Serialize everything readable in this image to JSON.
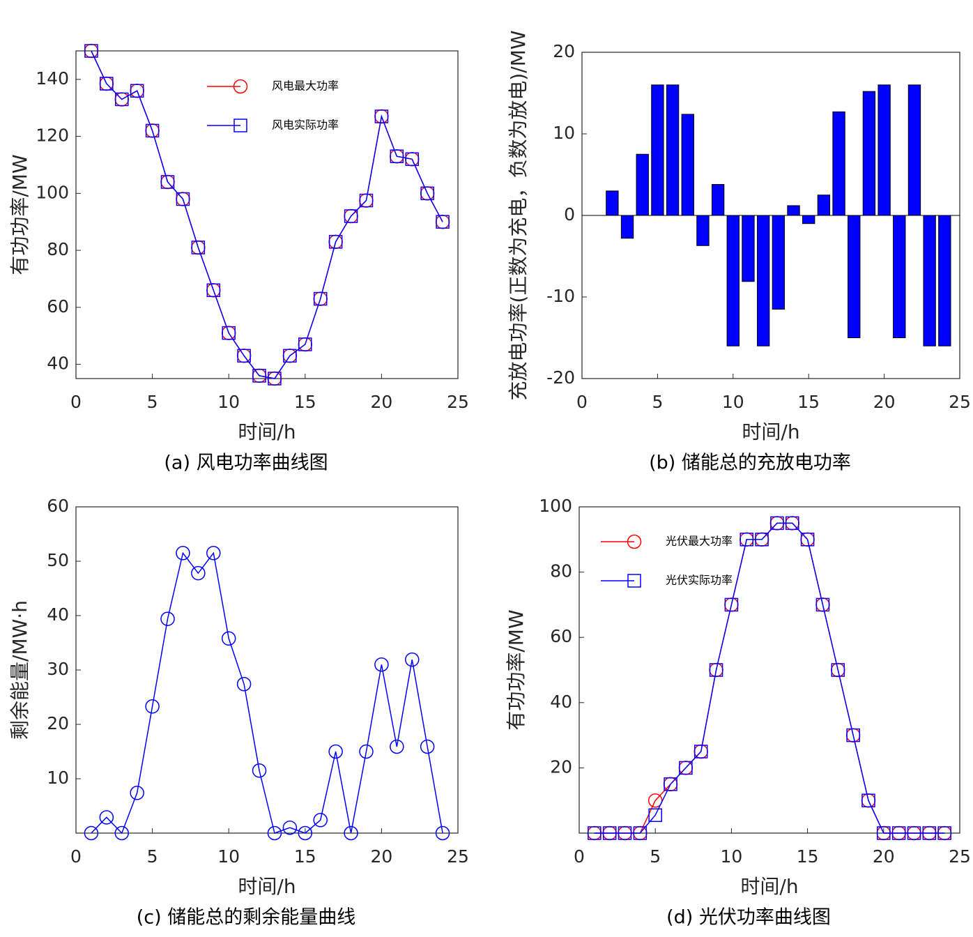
{
  "chart_data": [
    {
      "type": "line",
      "caption": "(a)  风电功率曲线图",
      "xlabel": "时间/h",
      "ylabel": "有功功率/MW",
      "x": [
        1,
        2,
        3,
        4,
        5,
        6,
        7,
        8,
        9,
        10,
        11,
        12,
        13,
        14,
        15,
        16,
        17,
        18,
        19,
        20,
        21,
        22,
        23,
        24
      ],
      "series": [
        {
          "name": "风电最大功率",
          "color": "#ff0000",
          "marker": "circle",
          "values": [
            150,
            138.5,
            133,
            136,
            122,
            104,
            98,
            81,
            66,
            51,
            43,
            36,
            35,
            43,
            47,
            63,
            83,
            92,
            97.5,
            127,
            113,
            112,
            100,
            90
          ]
        },
        {
          "name": "风电实际功率",
          "color": "#0000ff",
          "marker": "square",
          "values": [
            150,
            138.5,
            133,
            136,
            122,
            104,
            98,
            81,
            66,
            51,
            43,
            36,
            35,
            43,
            47,
            63,
            83,
            92,
            97.5,
            127,
            113,
            112,
            100,
            90
          ]
        }
      ],
      "xlim": [
        0,
        25
      ],
      "xticks": [
        0,
        5,
        10,
        15,
        20,
        25
      ],
      "ylim": [
        35,
        150
      ],
      "yticks": [
        40,
        60,
        80,
        100,
        120,
        140
      ],
      "legend": "upper center"
    },
    {
      "type": "bar",
      "caption": "(b)  储能总的充放电功率",
      "xlabel": "时间/h",
      "ylabel": "充放电功率(正数为充电，负数为放电)/MW",
      "x": [
        1,
        2,
        3,
        4,
        5,
        6,
        7,
        8,
        9,
        10,
        11,
        12,
        13,
        14,
        15,
        16,
        17,
        18,
        19,
        20,
        21,
        22,
        23,
        24
      ],
      "values": [
        0,
        3,
        -2.8,
        7.5,
        16,
        16,
        12.4,
        -3.7,
        3.8,
        -16,
        -8.1,
        -16,
        -11.5,
        1.2,
        -1,
        2.5,
        12.7,
        -15,
        15.2,
        16,
        -15,
        16,
        -16,
        -16
      ],
      "color": "#0000ff",
      "xlim": [
        0,
        25
      ],
      "xticks": [
        0,
        5,
        10,
        15,
        20,
        25
      ],
      "ylim": [
        -20,
        20
      ],
      "yticks": [
        -20,
        -10,
        0,
        10,
        20
      ]
    },
    {
      "type": "line",
      "caption": "(c)  储能总的剩余能量曲线",
      "xlabel": "时间/h",
      "ylabel": "剩余能量/MW·h",
      "x": [
        1,
        2,
        3,
        4,
        5,
        6,
        7,
        8,
        9,
        10,
        11,
        12,
        13,
        14,
        15,
        16,
        17,
        18,
        19,
        20,
        21,
        22,
        23,
        24
      ],
      "values": [
        0,
        2.9,
        0,
        7.4,
        23.3,
        39.4,
        51.5,
        47.8,
        51.5,
        35.8,
        27.4,
        11.5,
        0,
        1,
        0,
        2.4,
        15,
        0,
        15,
        31,
        15.9,
        31.9,
        15.9,
        0
      ],
      "color": "#0000ff",
      "marker": "circle",
      "xlim": [
        0,
        25
      ],
      "xticks": [
        0,
        5,
        10,
        15,
        20,
        25
      ],
      "ylim": [
        0,
        60
      ],
      "yticks": [
        10,
        20,
        30,
        40,
        50,
        60
      ]
    },
    {
      "type": "line",
      "caption": "(d)  光伏功率曲线图",
      "xlabel": "时间/h",
      "ylabel": "有功功率/MW",
      "x": [
        1,
        2,
        3,
        4,
        5,
        6,
        7,
        8,
        9,
        10,
        11,
        12,
        13,
        14,
        15,
        16,
        17,
        18,
        19,
        20,
        21,
        22,
        23,
        24
      ],
      "series": [
        {
          "name": "光伏最大功率",
          "color": "#ff0000",
          "marker": "circle",
          "values": [
            0,
            0,
            0,
            0,
            10,
            15,
            20,
            25,
            50,
            70,
            90,
            90,
            95,
            95,
            90,
            70,
            50,
            30,
            10,
            0,
            0,
            0,
            0,
            0
          ]
        },
        {
          "name": "光伏实际功率",
          "color": "#0000ff",
          "marker": "square",
          "values": [
            0,
            0,
            0,
            0,
            5.5,
            15,
            20,
            25,
            50,
            70,
            90,
            90,
            95,
            95,
            90,
            70,
            50,
            30,
            10,
            0,
            0,
            0,
            0,
            0
          ]
        }
      ],
      "xlim": [
        0,
        25
      ],
      "xticks": [
        0,
        5,
        10,
        15,
        20,
        25
      ],
      "ylim": [
        0,
        100
      ],
      "yticks": [
        20,
        40,
        60,
        80,
        100
      ],
      "legend": "upper left"
    }
  ]
}
